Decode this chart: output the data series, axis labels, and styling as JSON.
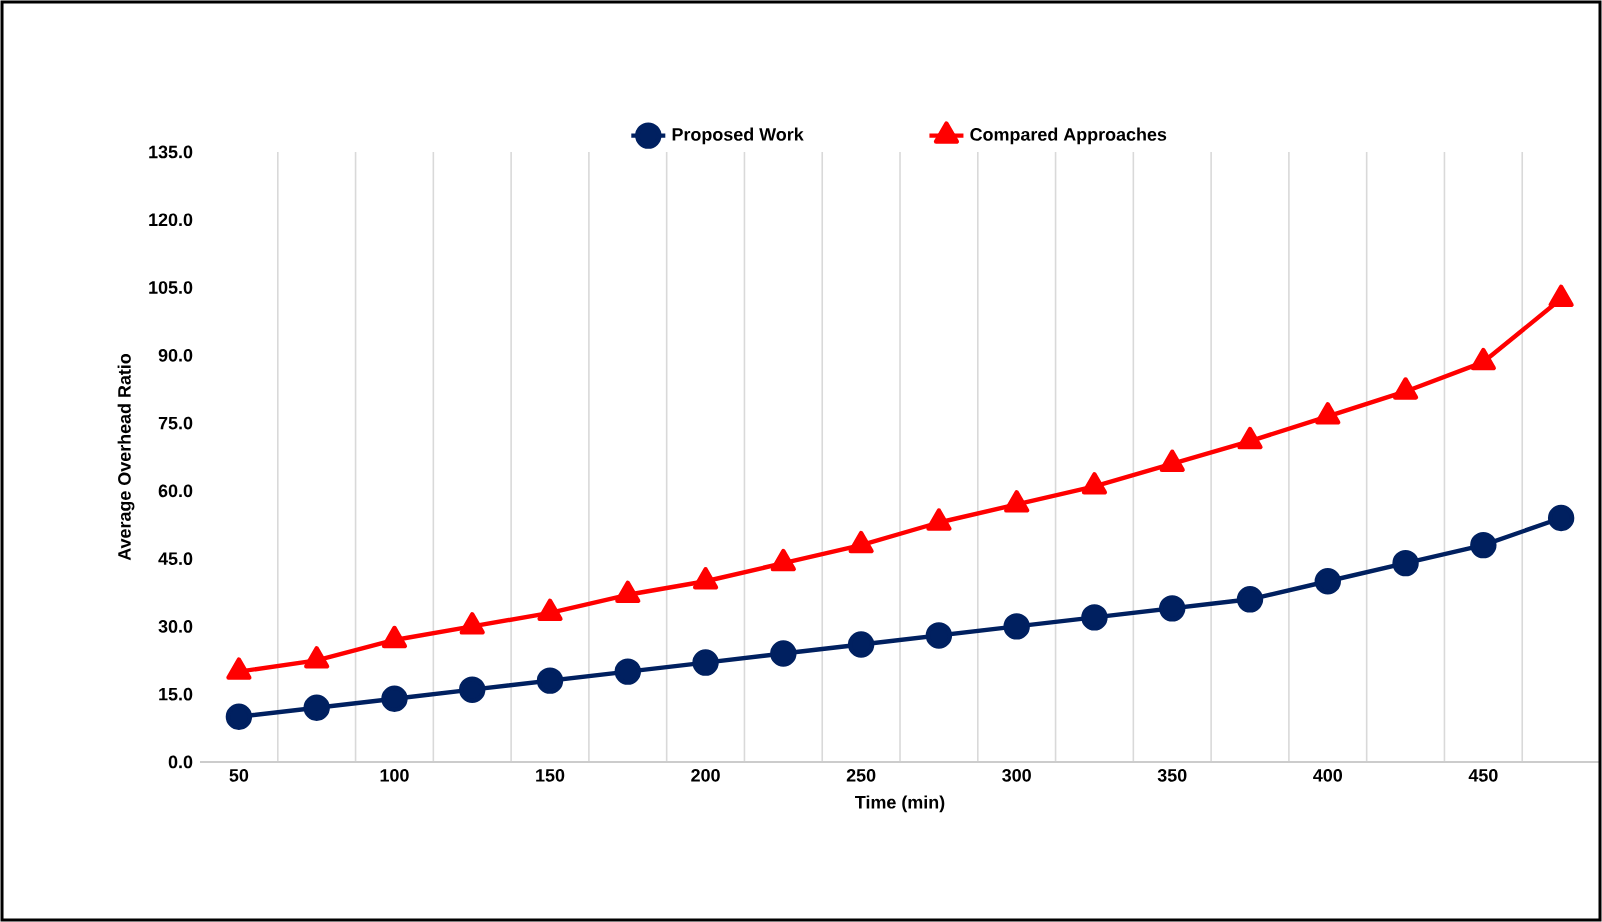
{
  "chart_data": {
    "type": "line",
    "xlabel": "Time (min)",
    "ylabel": "Average Overhead Ratio",
    "categories": [
      "50",
      null,
      "100",
      null,
      "150",
      null,
      "200",
      null,
      "250",
      null,
      "300",
      null,
      "350",
      null,
      "400",
      null,
      "450",
      null
    ],
    "series": [
      {
        "name": "Proposed Work",
        "color": "#002060",
        "marker": "circle",
        "values": [
          10,
          12,
          14,
          16,
          18,
          20,
          22,
          24,
          26,
          28,
          30,
          32,
          34,
          36,
          40,
          44,
          48,
          54
        ]
      },
      {
        "name": "Compared Approaches",
        "color": "#ff0000",
        "marker": "triangle",
        "values": [
          20,
          22.5,
          27,
          30,
          33,
          37,
          40,
          44,
          48,
          53,
          57,
          61,
          66,
          71,
          76.5,
          82,
          88.5,
          102.5
        ]
      }
    ],
    "ylim": [
      0,
      135
    ],
    "yticks": [
      {
        "value": 0,
        "label": "0.0"
      },
      {
        "value": 15,
        "label": "15.0"
      },
      {
        "value": 30,
        "label": "30.0"
      },
      {
        "value": 45,
        "label": "45.0"
      },
      {
        "value": 60,
        "label": "60.0"
      },
      {
        "value": 75,
        "label": "75.0"
      },
      {
        "value": 90,
        "label": "90.0"
      },
      {
        "value": 105,
        "label": "105.0"
      },
      {
        "value": 120,
        "label": "120.0"
      },
      {
        "value": 135,
        "label": "135.0"
      }
    ],
    "grid": "x",
    "legend": "top",
    "line_style": "solid"
  }
}
